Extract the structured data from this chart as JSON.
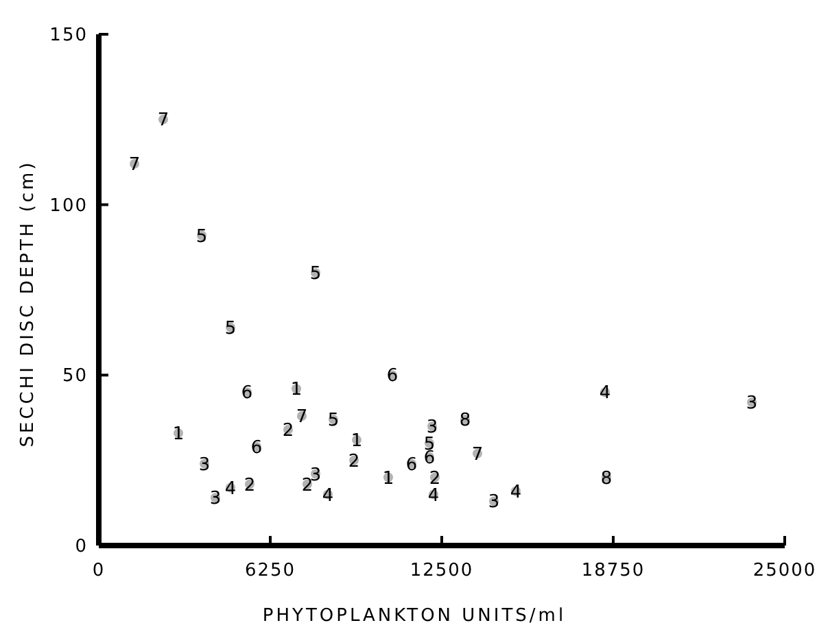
{
  "chart_data": {
    "type": "scatter",
    "xlabel": "PHYTOPLANKTON UNITS/ml",
    "ylabel": "SECCHI DISC DEPTH (cm)",
    "xlim": [
      0,
      25000
    ],
    "ylim": [
      0,
      150
    ],
    "xticks": [
      0,
      6250,
      12500,
      18750,
      25000
    ],
    "yticks": [
      0,
      50,
      100,
      150
    ],
    "grid": false,
    "series": [
      {
        "name": "1",
        "color": "#000000",
        "x": [
          7200,
          2900,
          9400,
          10550
        ],
        "values": [
          46,
          33,
          31,
          20
        ]
      },
      {
        "name": "2",
        "color": "#000000",
        "x": [
          6900,
          9300,
          7600,
          5500,
          12250
        ],
        "values": [
          34,
          25,
          18,
          18,
          20
        ]
      },
      {
        "name": "3",
        "color": "#000000",
        "x": [
          23800,
          3850,
          7900,
          4250,
          12150,
          14400
        ],
        "values": [
          42,
          24,
          21,
          14,
          35,
          13
        ]
      },
      {
        "name": "4",
        "color": "#000000",
        "x": [
          18450,
          8350,
          4800,
          12200,
          15200
        ],
        "values": [
          45,
          15,
          17,
          15,
          16
        ]
      },
      {
        "name": "5",
        "color": "#000000",
        "x": [
          3750,
          7900,
          4800,
          8550,
          12050
        ],
        "values": [
          91,
          80,
          64,
          37,
          30
        ]
      },
      {
        "name": "6",
        "color": "#000000",
        "x": [
          5400,
          10700,
          5750,
          11400,
          12050
        ],
        "values": [
          45,
          50,
          29,
          24,
          26
        ]
      },
      {
        "name": "7",
        "color": "#000000",
        "x": [
          2350,
          1300,
          7400,
          13800
        ],
        "values": [
          125,
          112,
          38,
          27
        ]
      },
      {
        "name": "8",
        "color": "#000000",
        "x": [
          13350,
          18500
        ],
        "values": [
          37,
          20
        ]
      }
    ]
  }
}
